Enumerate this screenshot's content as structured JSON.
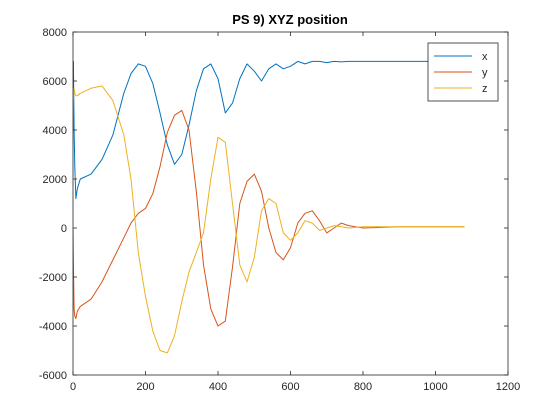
{
  "chart_data": {
    "type": "line",
    "title": "PS 9) XYZ position",
    "xlabel": "",
    "ylabel": "",
    "xlim": [
      0,
      1200
    ],
    "ylim": [
      -6000,
      8000
    ],
    "xticks": [
      0,
      200,
      400,
      600,
      800,
      1000,
      1200
    ],
    "yticks": [
      -6000,
      -4000,
      -2000,
      0,
      2000,
      4000,
      6000,
      8000
    ],
    "grid": false,
    "legend_position": "top-right",
    "series": [
      {
        "name": "x",
        "color": "#0072BD",
        "x": [
          0,
          1,
          3,
          5,
          8,
          12,
          20,
          50,
          80,
          110,
          140,
          160,
          180,
          200,
          220,
          240,
          260,
          280,
          300,
          320,
          340,
          360,
          380,
          400,
          420,
          440,
          460,
          480,
          500,
          520,
          540,
          560,
          580,
          600,
          620,
          640,
          660,
          680,
          700,
          720,
          740,
          760,
          800,
          900,
          1000,
          1080
        ],
        "y": [
          6000,
          6800,
          4000,
          2500,
          1200,
          1600,
          2000,
          2200,
          2800,
          3800,
          5500,
          6300,
          6700,
          6600,
          5900,
          4700,
          3400,
          2600,
          3000,
          4200,
          5600,
          6500,
          6700,
          6100,
          4700,
          5100,
          6100,
          6700,
          6400,
          6000,
          6500,
          6700,
          6500,
          6600,
          6800,
          6700,
          6800,
          6800,
          6750,
          6800,
          6780,
          6800,
          6800,
          6800,
          6800,
          6800
        ]
      },
      {
        "name": "y",
        "color": "#D95319",
        "x": [
          0,
          1,
          3,
          5,
          8,
          12,
          20,
          50,
          80,
          110,
          140,
          160,
          180,
          200,
          220,
          240,
          260,
          280,
          300,
          320,
          340,
          360,
          380,
          400,
          420,
          440,
          460,
          480,
          500,
          520,
          540,
          560,
          580,
          600,
          620,
          640,
          660,
          680,
          700,
          720,
          740,
          760,
          800,
          900,
          1000,
          1080
        ],
        "y": [
          0,
          -1500,
          -3300,
          -3600,
          -3700,
          -3400,
          -3200,
          -2900,
          -2200,
          -1300,
          -400,
          200,
          600,
          800,
          1400,
          2500,
          3900,
          4600,
          4800,
          4000,
          1500,
          -1500,
          -3300,
          -4000,
          -3800,
          -1600,
          1000,
          1900,
          2200,
          1500,
          0,
          -1000,
          -1300,
          -800,
          200,
          600,
          700,
          300,
          -200,
          0,
          200,
          100,
          0,
          50,
          50,
          50
        ]
      },
      {
        "name": "z",
        "color": "#EDB120",
        "x": [
          0,
          1,
          3,
          5,
          8,
          12,
          20,
          50,
          80,
          110,
          140,
          160,
          180,
          200,
          220,
          240,
          260,
          280,
          300,
          320,
          340,
          360,
          380,
          400,
          420,
          440,
          460,
          480,
          500,
          520,
          540,
          560,
          580,
          600,
          620,
          640,
          660,
          680,
          700,
          720,
          740,
          760,
          800,
          900,
          1000,
          1080
        ],
        "y": [
          4000,
          5200,
          5700,
          5500,
          5400,
          5400,
          5500,
          5700,
          5800,
          5200,
          3800,
          2000,
          -1000,
          -2800,
          -4200,
          -5000,
          -5100,
          -4400,
          -3000,
          -1800,
          -1000,
          -200,
          2000,
          3700,
          3500,
          1000,
          -1500,
          -2200,
          -1200,
          700,
          1200,
          1000,
          -200,
          -500,
          -200,
          300,
          200,
          -100,
          0,
          100,
          50,
          0,
          50,
          50,
          50,
          50
        ]
      }
    ]
  }
}
